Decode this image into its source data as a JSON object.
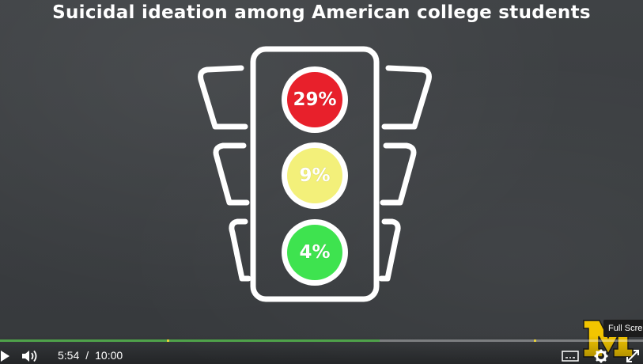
{
  "video": {
    "title": "Suicidal ideation among American college students",
    "lights": [
      {
        "label": "29%",
        "color": "#e8202b"
      },
      {
        "label": "9%",
        "color": "#f3f07a"
      },
      {
        "label": "4%",
        "color": "#3ee34f"
      }
    ]
  },
  "player": {
    "current_time": "5:54",
    "separator": "/",
    "duration": "10:00",
    "progress_fraction": 0.59,
    "progress_color": "#4fa24a",
    "fullscreen_tooltip": "Full Scre",
    "icons": [
      "play-icon",
      "volume-icon",
      "subtitles-icon",
      "gear-icon",
      "fullscreen-icon"
    ]
  }
}
